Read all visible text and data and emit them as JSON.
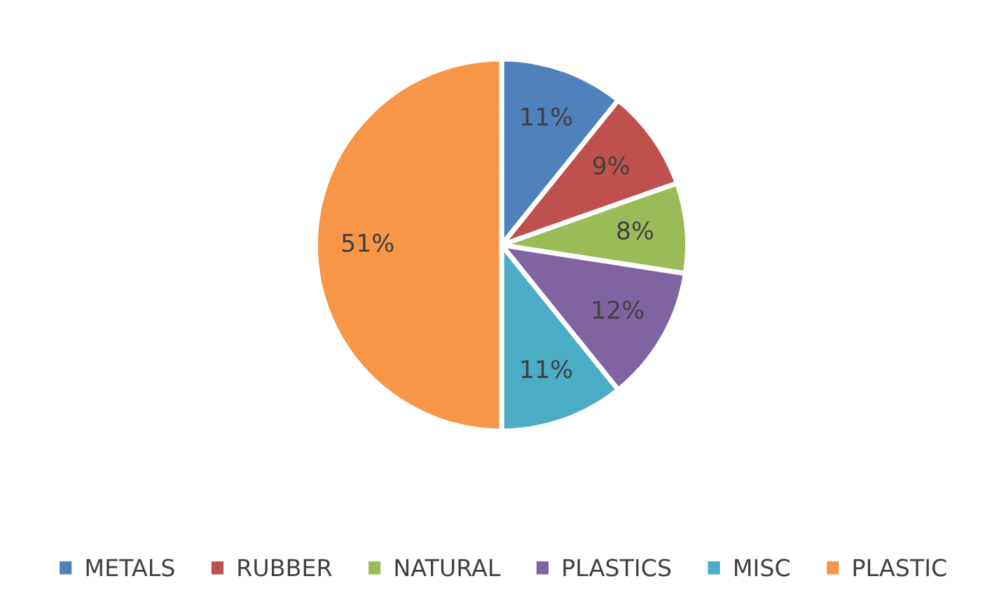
{
  "chart_data": {
    "type": "pie",
    "categories": [
      "METALS",
      "RUBBER",
      "NATURAL",
      "PLASTICS",
      "MISC",
      "PLASTIC"
    ],
    "values": [
      11,
      9,
      8,
      12,
      11,
      51
    ],
    "value_labels": [
      "11%",
      "9%",
      "8%",
      "12%",
      "11%",
      "51%"
    ],
    "colors": [
      "#4f81bd",
      "#c0504d",
      "#9bbb59",
      "#8064a2",
      "#4bacc6",
      "#f79646"
    ],
    "legend": "bottom"
  }
}
